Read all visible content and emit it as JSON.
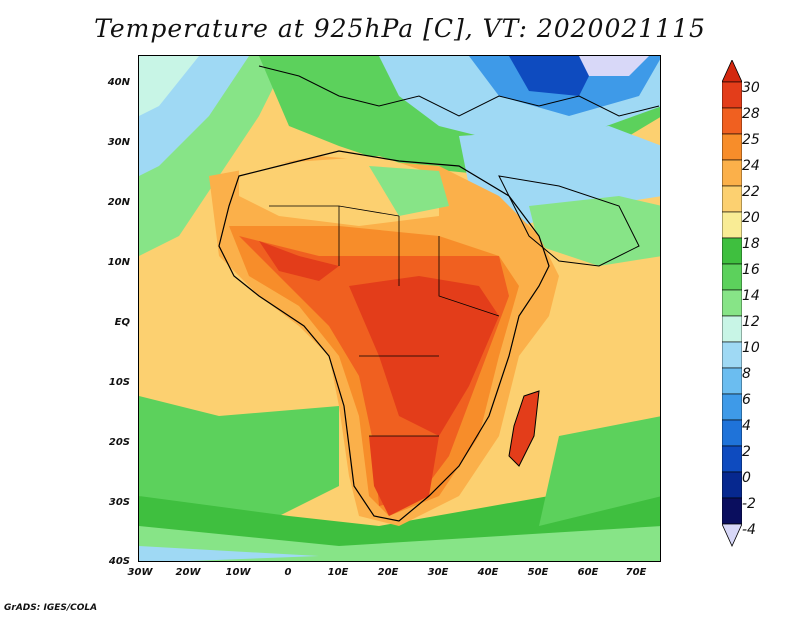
{
  "title": "Temperature at 925hPa [C], VT: 2020021115",
  "credit": "GrADS: IGES/COLA",
  "lat_labels": [
    "40N",
    "30N",
    "20N",
    "10N",
    "EQ",
    "10S",
    "20S",
    "30S",
    "40S"
  ],
  "lon_labels": [
    "30W",
    "20W",
    "10W",
    "0",
    "10E",
    "20E",
    "30E",
    "40E",
    "50E",
    "60E",
    "70E"
  ],
  "colorbar": {
    "labels": [
      "30",
      "28",
      "25",
      "24",
      "22",
      "20",
      "18",
      "16",
      "14",
      "12",
      "10",
      "8",
      "6",
      "4",
      "2",
      "0",
      "-2",
      "-4"
    ],
    "colors": [
      "#e33d1a",
      "#f06020",
      "#f78d2a",
      "#fbb04a",
      "#fcd070",
      "#f9ec95",
      "#3fbf3f",
      "#5cd15c",
      "#87e487",
      "#c8f5e6",
      "#9fd9f4",
      "#6bbdf0",
      "#3e9ae8",
      "#1f73d9",
      "#0e4bbf",
      "#06288f",
      "#0a0e5e"
    ],
    "top_cap": "#d3280f",
    "bottom_cap": "#d8d8f8"
  }
}
